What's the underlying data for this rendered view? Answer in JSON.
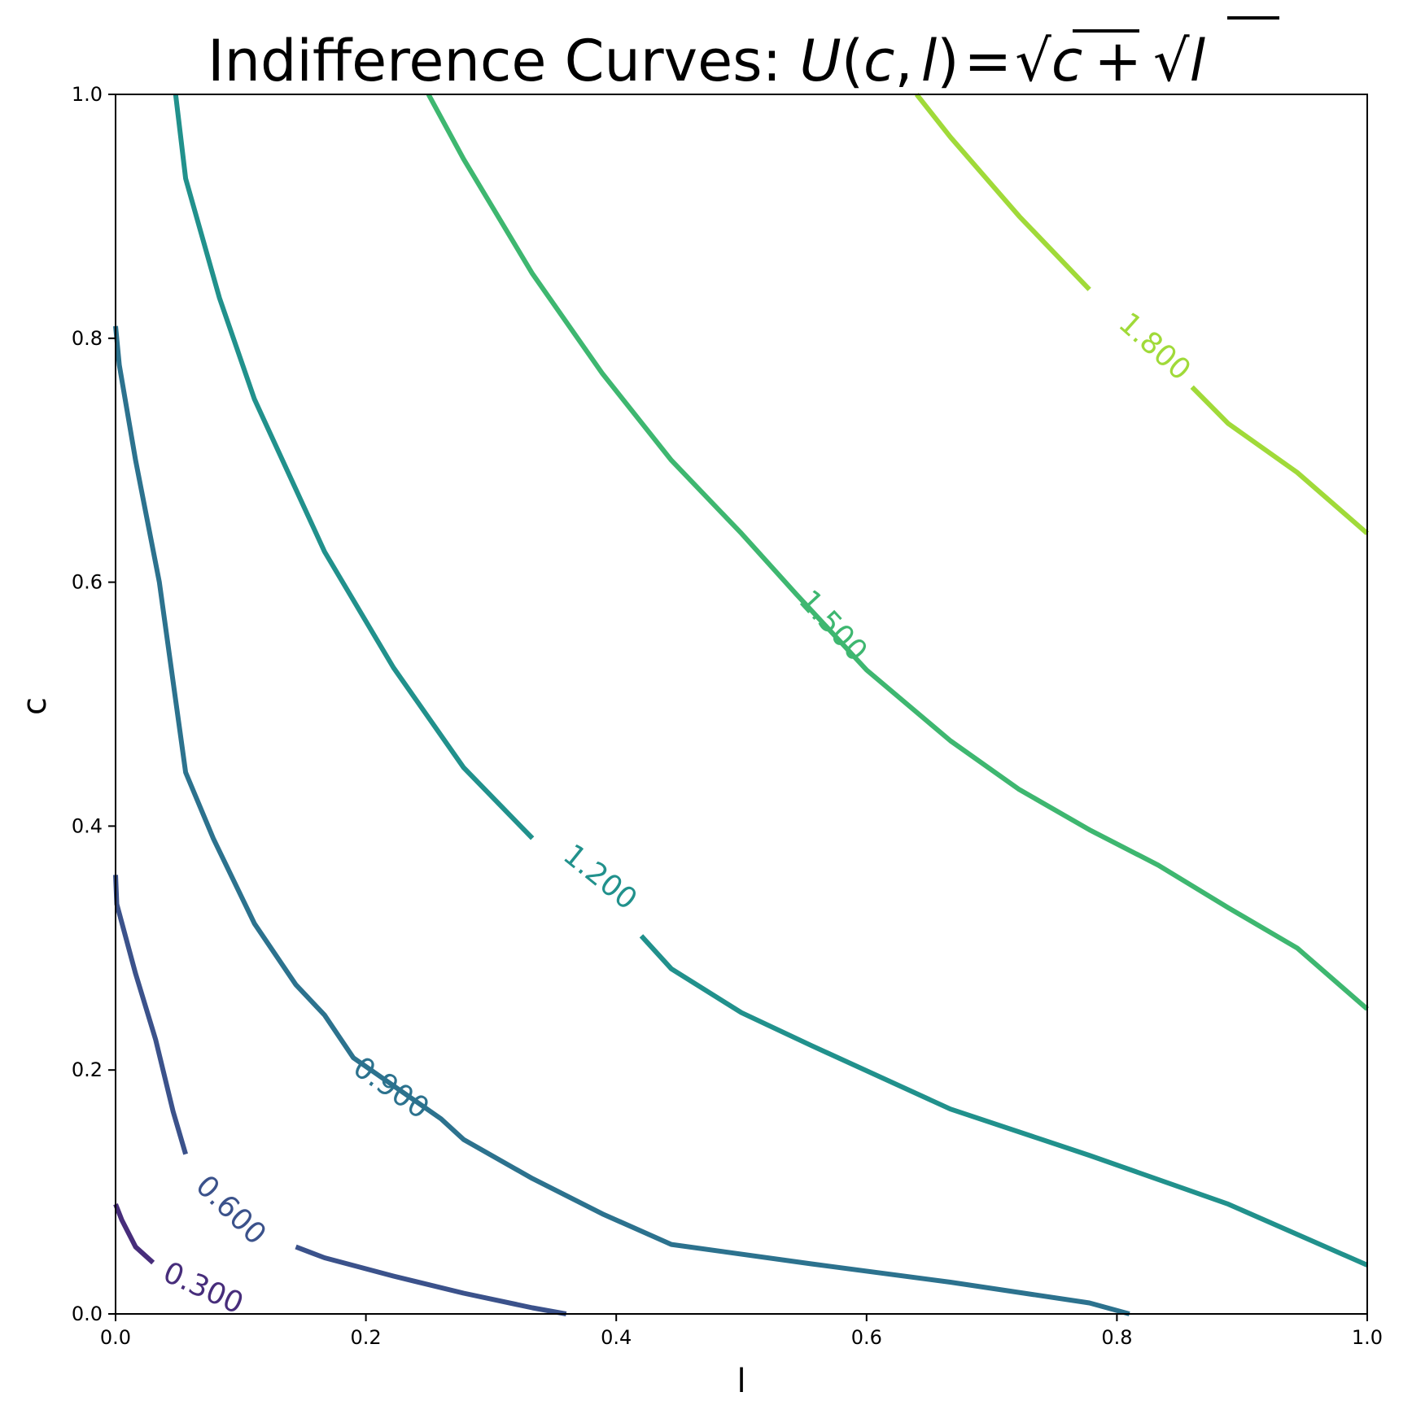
{
  "chart_data": {
    "type": "contour",
    "title": "Indifference Curves: U(c, l) = √c + √l",
    "title_parts": {
      "prefix": "Indifference Curves: ",
      "U": "U",
      "open": "(",
      "c": "c",
      "comma": ",",
      "l": "l",
      "close": ")",
      "eq": "=",
      "sqrt": "√",
      "c2": "c",
      "plus": "+",
      "sqrt2": "√",
      "l2": "l"
    },
    "xlabel": "l",
    "ylabel": "c",
    "xlim": [
      0.0,
      1.0
    ],
    "ylim": [
      0.0,
      1.0
    ],
    "xticks": [
      "0.0",
      "0.2",
      "0.4",
      "0.6",
      "0.8",
      "1.0"
    ],
    "yticks": [
      "0.0",
      "0.2",
      "0.4",
      "0.6",
      "0.8",
      "1.0"
    ],
    "grid": false,
    "utility_function": "sqrt(c) + sqrt(l)",
    "series": [
      {
        "level": 0.3,
        "label": "0.300",
        "color": "#472d7b",
        "label_at": [
          0.07,
          0.021
        ],
        "points": [
          [
            0.0,
            0.09
          ],
          [
            0.005,
            0.077
          ],
          [
            0.016,
            0.055
          ],
          [
            0.03,
            0.042
          ],
          [
            0.045,
            0.028
          ],
          [
            0.06,
            0.018
          ],
          [
            0.075,
            0.011
          ],
          [
            0.09,
            0.0
          ]
        ]
      },
      {
        "level": 0.6,
        "label": "0.600",
        "color": "#3b528b",
        "label_at": [
          0.092,
          0.085
        ],
        "points": [
          [
            0.0,
            0.36
          ],
          [
            0.001,
            0.336
          ],
          [
            0.016,
            0.279
          ],
          [
            0.032,
            0.225
          ],
          [
            0.046,
            0.166
          ],
          [
            0.056,
            0.131
          ],
          [
            0.075,
            0.108
          ],
          [
            0.1,
            0.083
          ],
          [
            0.144,
            0.055
          ],
          [
            0.167,
            0.046
          ],
          [
            0.222,
            0.031
          ],
          [
            0.278,
            0.017
          ],
          [
            0.333,
            0.005
          ],
          [
            0.36,
            0.0
          ]
        ]
      },
      {
        "level": 0.9,
        "label": "0.900",
        "color": "#2c728e",
        "label_at": [
          0.22,
          0.185
        ],
        "points": [
          [
            0.0,
            0.81
          ],
          [
            0.003,
            0.778
          ],
          [
            0.016,
            0.7
          ],
          [
            0.035,
            0.6
          ],
          [
            0.056,
            0.444
          ],
          [
            0.078,
            0.39
          ],
          [
            0.111,
            0.32
          ],
          [
            0.144,
            0.27
          ],
          [
            0.167,
            0.245
          ],
          [
            0.19,
            0.21
          ],
          [
            0.26,
            0.16
          ],
          [
            0.278,
            0.143
          ],
          [
            0.333,
            0.111
          ],
          [
            0.389,
            0.082
          ],
          [
            0.444,
            0.057
          ],
          [
            0.556,
            0.041
          ],
          [
            0.667,
            0.026
          ],
          [
            0.778,
            0.009
          ],
          [
            0.81,
            0.0
          ]
        ]
      },
      {
        "level": 1.2,
        "label": "1.200",
        "color": "#21918c",
        "label_at": [
          0.387,
          0.358
        ],
        "points": [
          [
            0.048,
            1.0
          ],
          [
            0.056,
            0.931
          ],
          [
            0.083,
            0.833
          ],
          [
            0.111,
            0.75
          ],
          [
            0.167,
            0.625
          ],
          [
            0.222,
            0.53
          ],
          [
            0.278,
            0.448
          ],
          [
            0.333,
            0.39
          ],
          [
            0.356,
            0.363
          ],
          [
            0.42,
            0.31
          ],
          [
            0.444,
            0.283
          ],
          [
            0.5,
            0.247
          ],
          [
            0.556,
            0.22
          ],
          [
            0.667,
            0.168
          ],
          [
            0.778,
            0.13
          ],
          [
            0.889,
            0.09
          ],
          [
            1.0,
            0.04
          ]
        ]
      },
      {
        "level": 1.5,
        "label": "1.500",
        "color": "#3eb770",
        "label_at": [
          0.573,
          0.564
        ],
        "points": [
          [
            0.25,
            1.0
          ],
          [
            0.278,
            0.947
          ],
          [
            0.333,
            0.853
          ],
          [
            0.389,
            0.771
          ],
          [
            0.444,
            0.7
          ],
          [
            0.5,
            0.64
          ],
          [
            0.544,
            0.59
          ],
          [
            0.6,
            0.528
          ],
          [
            0.667,
            0.47
          ],
          [
            0.722,
            0.43
          ],
          [
            0.778,
            0.397
          ],
          [
            0.833,
            0.368
          ],
          [
            0.889,
            0.333
          ],
          [
            0.944,
            0.3
          ],
          [
            1.0,
            0.25
          ]
        ]
      },
      {
        "level": 1.8,
        "label": "1.800",
        "color": "#a0da39",
        "label_at": [
          0.83,
          0.793
        ],
        "points": [
          [
            0.64,
            1.0
          ],
          [
            0.667,
            0.965
          ],
          [
            0.722,
            0.9
          ],
          [
            0.778,
            0.84
          ],
          [
            0.8,
            0.815
          ],
          [
            0.86,
            0.76
          ],
          [
            0.889,
            0.73
          ],
          [
            0.944,
            0.69
          ],
          [
            1.0,
            0.64
          ]
        ]
      }
    ]
  }
}
